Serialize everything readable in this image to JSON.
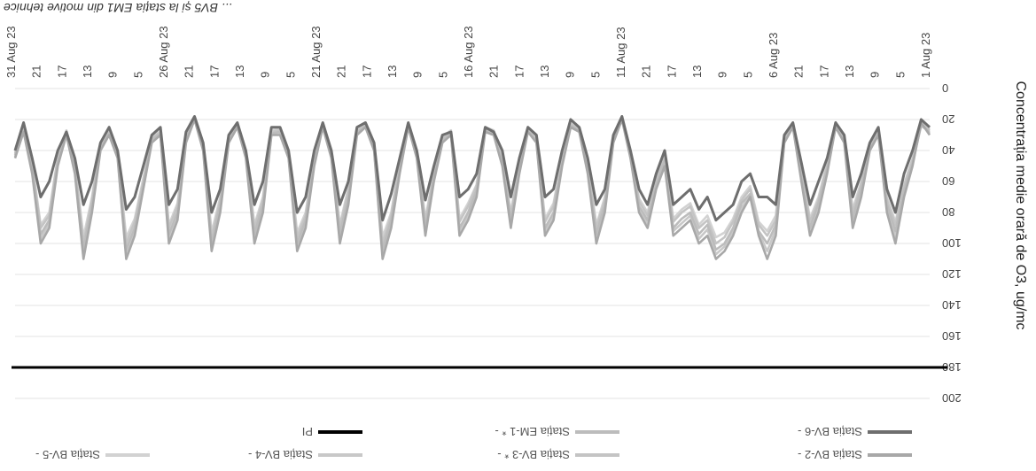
{
  "top_caption": "... BV5 și la stația EM1 din motive tehnice",
  "chart_data": {
    "type": "line",
    "orientation": "rotated-180",
    "title": "",
    "ylabel": "Concentrația medie orară de O3, ug/mc",
    "ylim": [
      0,
      200
    ],
    "yticks": [
      0,
      20,
      40,
      60,
      80,
      100,
      120,
      140,
      160,
      180,
      200
    ],
    "x_date_labels": [
      "1 Aug 23",
      "6 Aug 23",
      "11 Aug 23",
      "16 Aug 23",
      "21 Aug 23",
      "26 Aug 23",
      "31 Aug 23"
    ],
    "x_hour_labels": [
      "5",
      "9",
      "13",
      "17",
      "21"
    ],
    "threshold": {
      "name": "PI",
      "value": 180
    },
    "series": [
      {
        "name": "Stația BV-6 -",
        "color": "#6e6e6e",
        "values": [
          25,
          20,
          40,
          55,
          80,
          65,
          25,
          35,
          55,
          70,
          30,
          22,
          45,
          60,
          75,
          48,
          22,
          30,
          75,
          70,
          70,
          55,
          60,
          75,
          80,
          85,
          70,
          78,
          65,
          70,
          75,
          40,
          55,
          75,
          65,
          40,
          18,
          30,
          65,
          75,
          45,
          25,
          20,
          40,
          65,
          70,
          30,
          25,
          45,
          70,
          40,
          28,
          25,
          55,
          65,
          70,
          28,
          30,
          50,
          72,
          40,
          22,
          45,
          68,
          85,
          35,
          22,
          25,
          60,
          75,
          40,
          22,
          40,
          70,
          80,
          40,
          25,
          25,
          60,
          75,
          40,
          22,
          30,
          65,
          80,
          35,
          18,
          28,
          65,
          75,
          25,
          30,
          50,
          70,
          78,
          40,
          25,
          35,
          60,
          75,
          45,
          28,
          40,
          60,
          70,
          45,
          22,
          40
        ]
      },
      {
        "name": "Stația BV-2 -",
        "color": "#a8a8a8",
        "values": [
          30,
          22,
          50,
          70,
          100,
          80,
          30,
          40,
          70,
          90,
          35,
          25,
          55,
          80,
          95,
          60,
          25,
          35,
          95,
          110,
          95,
          70,
          80,
          95,
          105,
          110,
          95,
          100,
          85,
          90,
          95,
          50,
          65,
          90,
          80,
          45,
          20,
          35,
          80,
          100,
          55,
          28,
          25,
          50,
          85,
          95,
          35,
          28,
          55,
          90,
          50,
          30,
          28,
          70,
          85,
          95,
          30,
          35,
          60,
          95,
          45,
          25,
          55,
          90,
          110,
          40,
          25,
          30,
          75,
          100,
          45,
          25,
          50,
          90,
          105,
          45,
          30,
          30,
          80,
          100,
          45,
          25,
          35,
          80,
          105,
          40,
          20,
          35,
          85,
          100,
          30,
          35,
          65,
          95,
          110,
          45,
          30,
          40,
          80,
          110,
          55,
          30,
          50,
          90,
          100,
          55,
          28,
          45
        ]
      },
      {
        "name": "Stația EM-1 * -",
        "color": "#bcbcbc",
        "values": [
          28,
          24,
          48,
          66,
          92,
          75,
          28,
          38,
          64,
          84,
          33,
          24,
          52,
          74,
          90,
          56,
          24,
          33,
          88,
          100,
          92,
          68,
          74,
          90,
          100,
          104,
          88,
          94,
          80,
          84,
          90,
          46,
          62,
          85,
          76,
          43,
          20,
          33,
          75,
          94,
          52,
          27,
          24,
          48,
          80,
          90,
          34,
          27,
          52,
          85,
          48,
          29,
          27,
          66,
          80,
          90,
          29,
          33,
          57,
          90,
          43,
          24,
          52,
          85,
          104,
          38,
          24,
          29,
          70,
          94,
          43,
          24,
          47,
          85,
          100,
          43,
          28,
          29,
          75,
          94,
          43,
          24,
          33,
          75,
          100,
          38,
          20,
          33,
          80,
          94,
          29,
          33,
          62,
          90,
          104,
          43,
          29,
          38,
          75,
          104,
          52,
          29,
          47,
          85,
          94,
          52,
          27,
          43
        ]
      },
      {
        "name": "Stația BV-3 * -",
        "color": "#c4c4c4",
        "values": [
          27,
          23,
          46,
          63,
          88,
          72,
          27,
          36,
          62,
          80,
          32,
          23,
          50,
          72,
          86,
          54,
          23,
          32,
          85,
          95,
          88,
          65,
          72,
          86,
          96,
          100,
          85,
          90,
          76,
          80,
          86,
          44,
          60,
          82,
          73,
          42,
          19,
          32,
          72,
          90,
          50,
          26,
          23,
          46,
          76,
          86,
          33,
          26,
          50,
          82,
          46,
          28,
          26,
          63,
          76,
          86,
          28,
          32,
          55,
          86,
          42,
          23,
          50,
          82,
          100,
          36,
          23,
          28,
          66,
          90,
          42,
          23,
          45,
          82,
          96,
          42,
          27,
          28,
          72,
          90,
          42,
          23,
          32,
          72,
          96,
          36,
          19,
          32,
          76,
          90,
          28,
          32,
          60,
          86,
          100,
          42,
          28,
          36,
          72,
          100,
          50,
          28,
          45,
          82,
          90,
          50,
          26,
          42
        ]
      },
      {
        "name": "Stația BV-4 -",
        "color": "#c8c8c8",
        "values": [
          29,
          23,
          49,
          68,
          96,
          78,
          29,
          39,
          67,
          87,
          34,
          24,
          53,
          77,
          92,
          58,
          24,
          34,
          91,
          105,
          93,
          69,
          77,
          92,
          102,
          107,
          91,
          97,
          82,
          87,
          92,
          48,
          63,
          87,
          78,
          44,
          19,
          34,
          77,
          97,
          53,
          27,
          24,
          49,
          82,
          92,
          34,
          27,
          53,
          87,
          49,
          29,
          27,
          68,
          82,
          92,
          29,
          34,
          58,
          92,
          44,
          24,
          53,
          87,
          107,
          39,
          24,
          29,
          72,
          97,
          44,
          24,
          48,
          87,
          102,
          44,
          29,
          29,
          77,
          97,
          44,
          24,
          34,
          77,
          102,
          39,
          19,
          34,
          82,
          97,
          29,
          34,
          63,
          92,
          107,
          44,
          29,
          39,
          77,
          107,
          53,
          29,
          48,
          87,
          97,
          53,
          27,
          44
        ]
      },
      {
        "name": "Stația BV-5 -",
        "color": "#d2d2d2",
        "values": [
          26,
          22,
          45,
          62,
          86,
          70,
          26,
          35,
          60,
          78,
          31,
          22,
          48,
          70,
          84,
          52,
          22,
          31,
          82,
          92,
          86,
          63,
          70,
          84,
          93,
          96,
          82,
          88,
          74,
          78,
          84,
          43,
          58,
          80,
          71,
          41,
          18,
          31,
          70,
          88,
          48,
          25,
          22,
          45,
          74,
          84,
          32,
          25,
          48,
          80,
          45,
          27,
          25,
          62,
          74,
          84,
          27,
          31,
          54,
          84,
          41,
          22,
          48,
          80,
          96,
          35,
          22,
          27,
          64,
          88,
          41,
          22,
          44,
          80,
          93,
          41,
          26,
          27,
          70,
          88,
          41,
          22,
          31,
          70,
          93,
          35,
          18,
          31,
          74,
          88,
          27,
          31,
          58,
          84,
          96,
          41,
          27,
          35,
          70,
          96,
          48,
          27,
          44,
          80,
          88,
          48,
          25,
          41
        ]
      }
    ]
  }
}
